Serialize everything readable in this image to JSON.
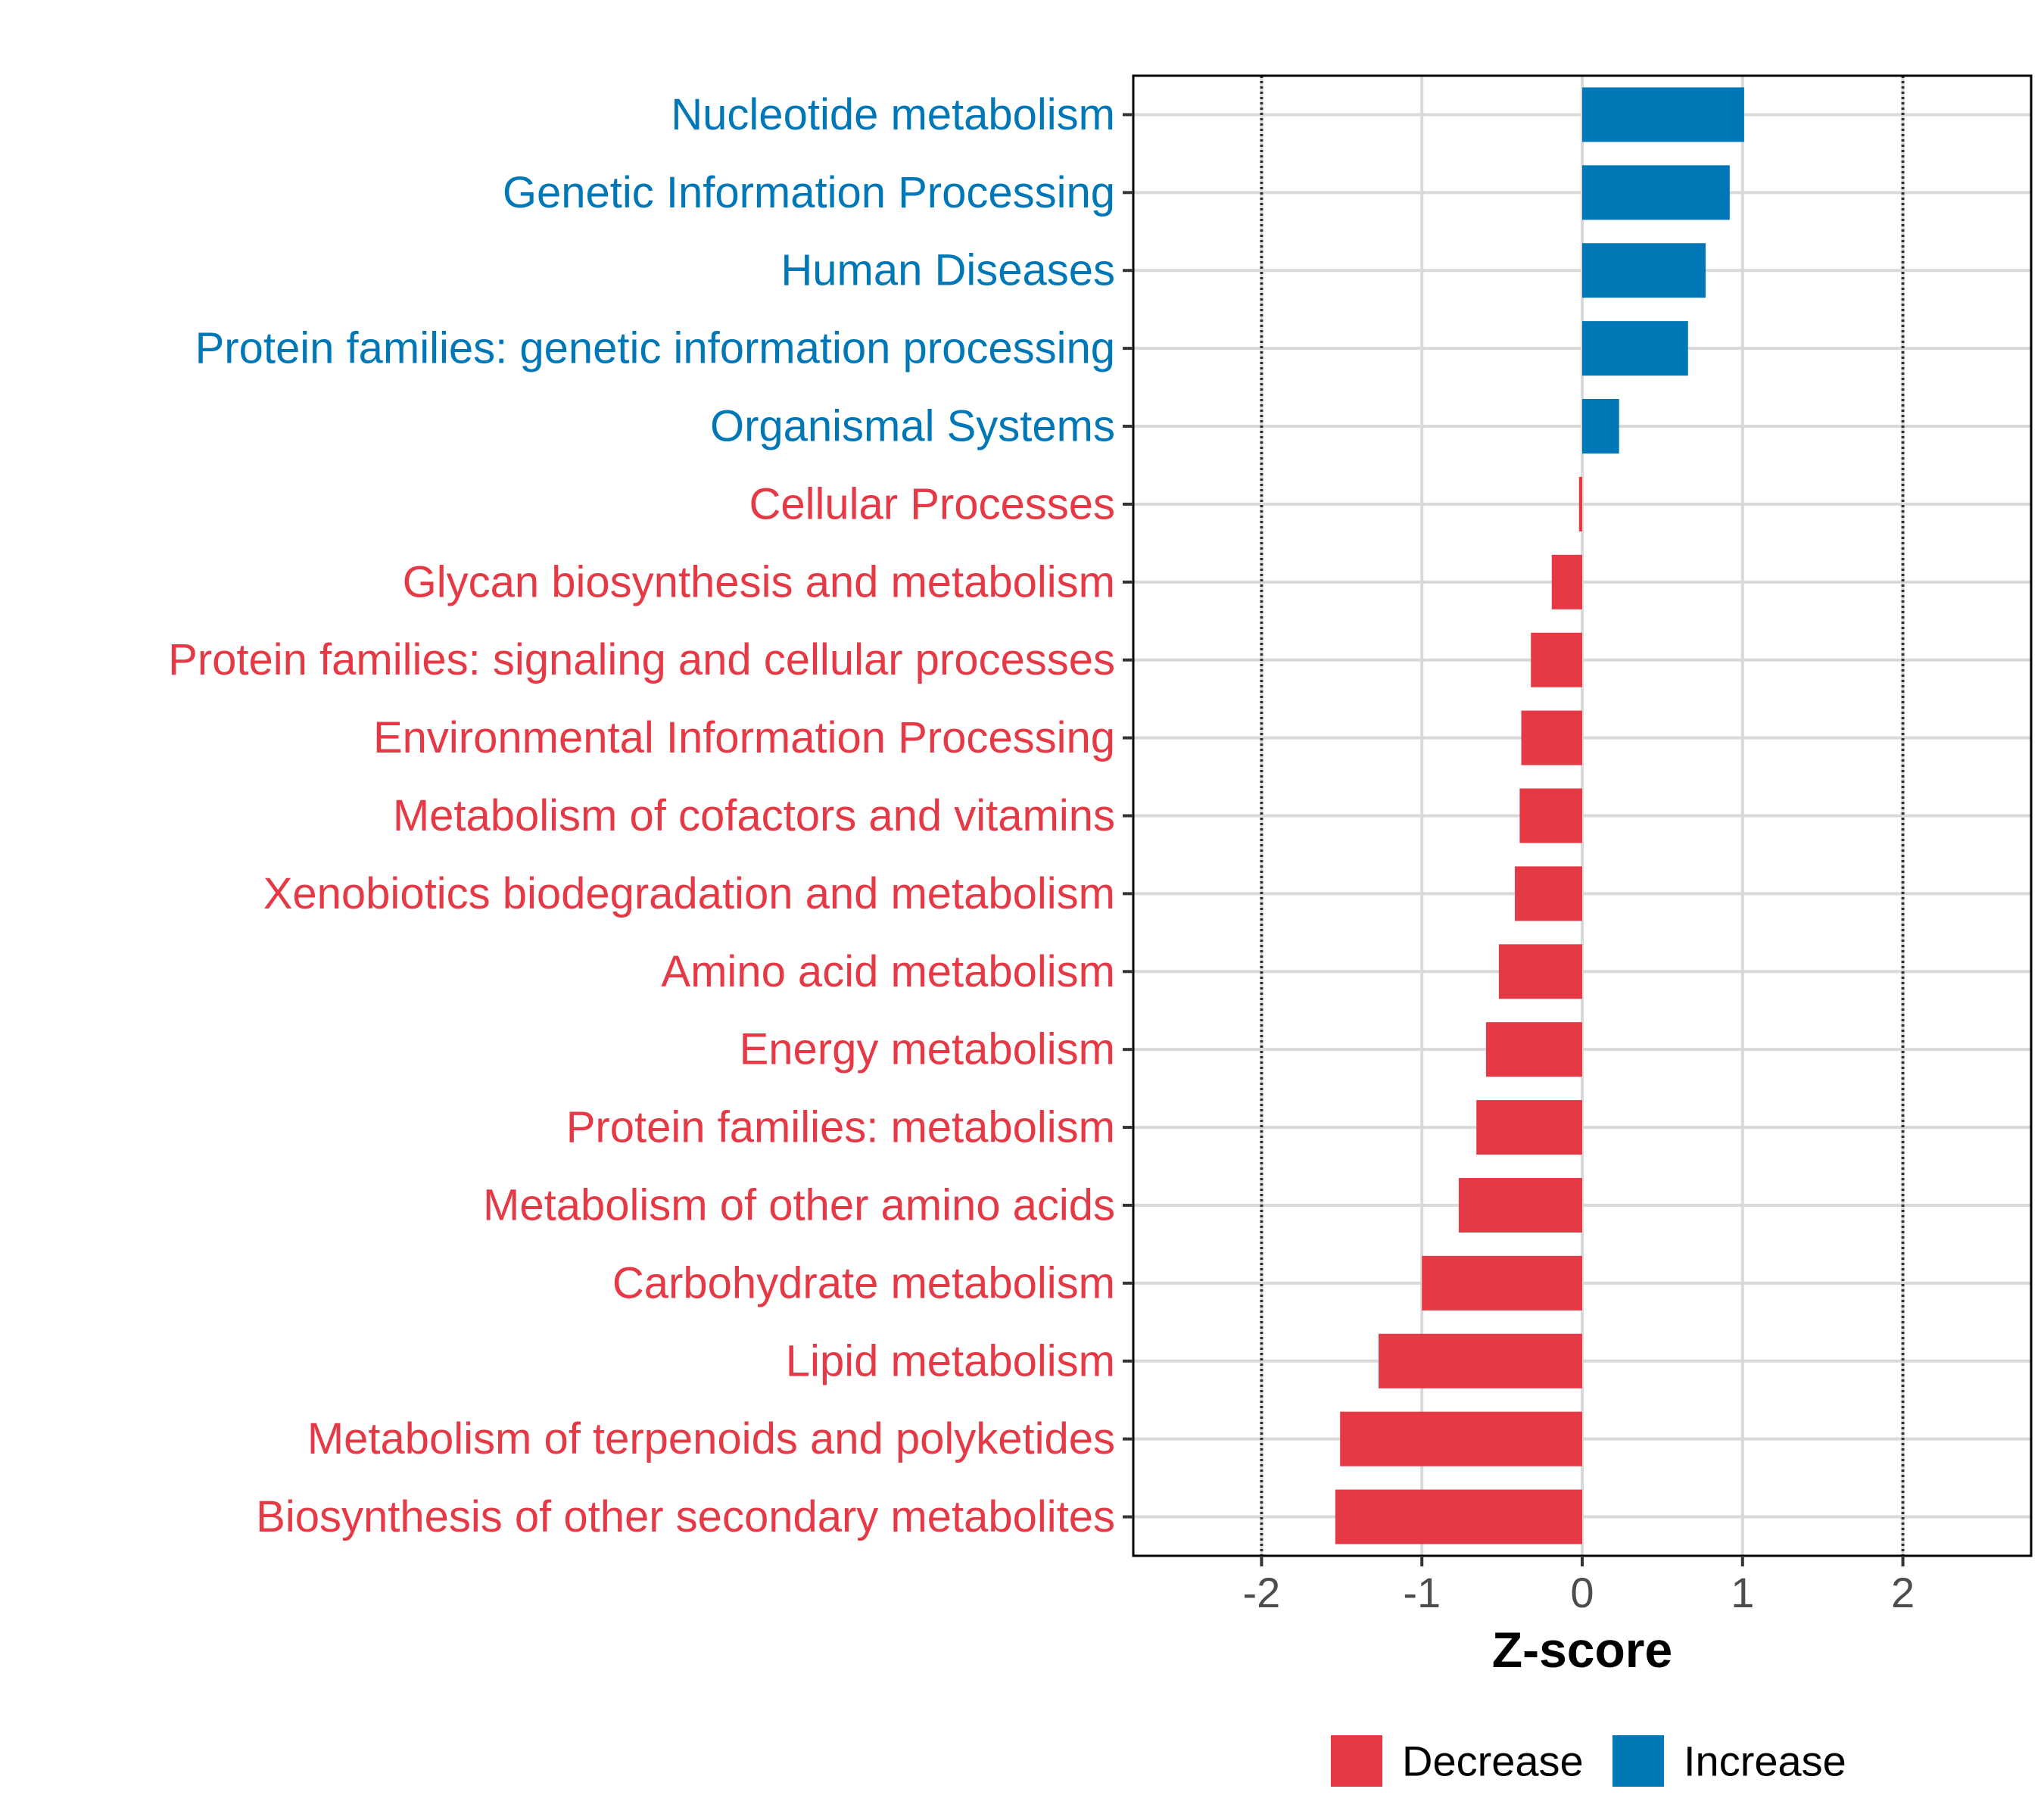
{
  "chart_data": {
    "type": "bar",
    "orientation": "horizontal",
    "xlabel": "Z-score",
    "xlim": [
      -2.8,
      2.8
    ],
    "xticks": [
      -2,
      -1,
      0,
      1,
      2
    ],
    "xtick_labels": [
      "-2",
      "-1",
      "0",
      "1",
      "2"
    ],
    "reference_lines": [
      -2,
      2
    ],
    "grid": true,
    "legend_position": "bottom",
    "legend": [
      {
        "name": "Decrease",
        "color": "#e63946"
      },
      {
        "name": "Increase",
        "color": "#0077b6"
      }
    ],
    "categories": [
      "Nucleotide metabolism",
      "Genetic Information Processing",
      "Human Diseases",
      "Protein families: genetic information processing",
      "Organismal Systems",
      "Cellular Processes",
      "Glycan biosynthesis and metabolism",
      "Protein families: signaling and cellular processes",
      "Environmental Information Processing",
      "Metabolism of cofactors and vitamins",
      "Xenobiotics biodegradation and metabolism",
      "Amino acid metabolism",
      "Energy metabolism",
      "Protein families: metabolism",
      "Metabolism of other amino acids",
      "Carbohydrate metabolism",
      "Lipid metabolism",
      "Metabolism of terpenoids and polyketides",
      "Biosynthesis of other secondary metabolites"
    ],
    "values": [
      1.01,
      0.92,
      0.77,
      0.66,
      0.23,
      -0.02,
      -0.19,
      -0.32,
      -0.38,
      -0.39,
      -0.42,
      -0.52,
      -0.6,
      -0.66,
      -0.77,
      -1.0,
      -1.27,
      -1.51,
      -1.54
    ],
    "groups": [
      "Increase",
      "Increase",
      "Increase",
      "Increase",
      "Increase",
      "Decrease",
      "Decrease",
      "Decrease",
      "Decrease",
      "Decrease",
      "Decrease",
      "Decrease",
      "Decrease",
      "Decrease",
      "Decrease",
      "Decrease",
      "Decrease",
      "Decrease",
      "Decrease"
    ]
  }
}
